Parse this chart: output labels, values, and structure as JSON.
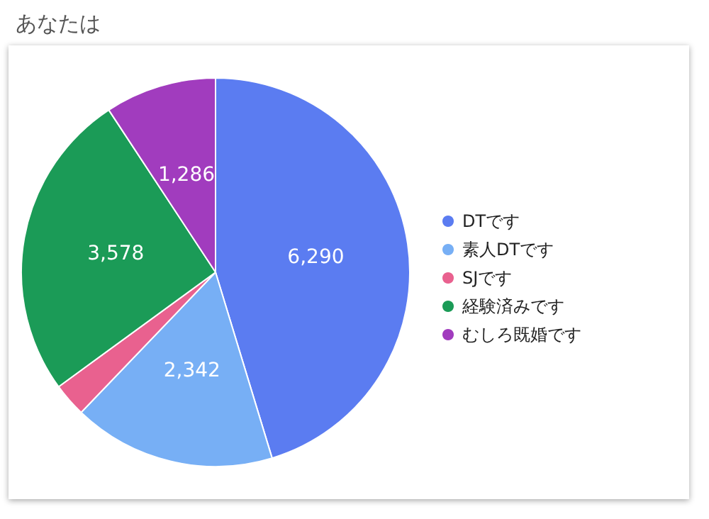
{
  "chart_data": {
    "type": "pie",
    "title": "あなたは",
    "categories": [
      "DTです",
      "素人DTです",
      "SJです",
      "経験済みです",
      "むしろ既婚です"
    ],
    "values": [
      6290,
      2342,
      390,
      3578,
      1286
    ],
    "value_labels": [
      "6,290",
      "2,342",
      null,
      "3,578",
      "1,286"
    ],
    "colors": [
      "#5b7cf1",
      "#77aff5",
      "#e9618f",
      "#1b9b57",
      "#a13cbe"
    ],
    "legend": "right"
  }
}
